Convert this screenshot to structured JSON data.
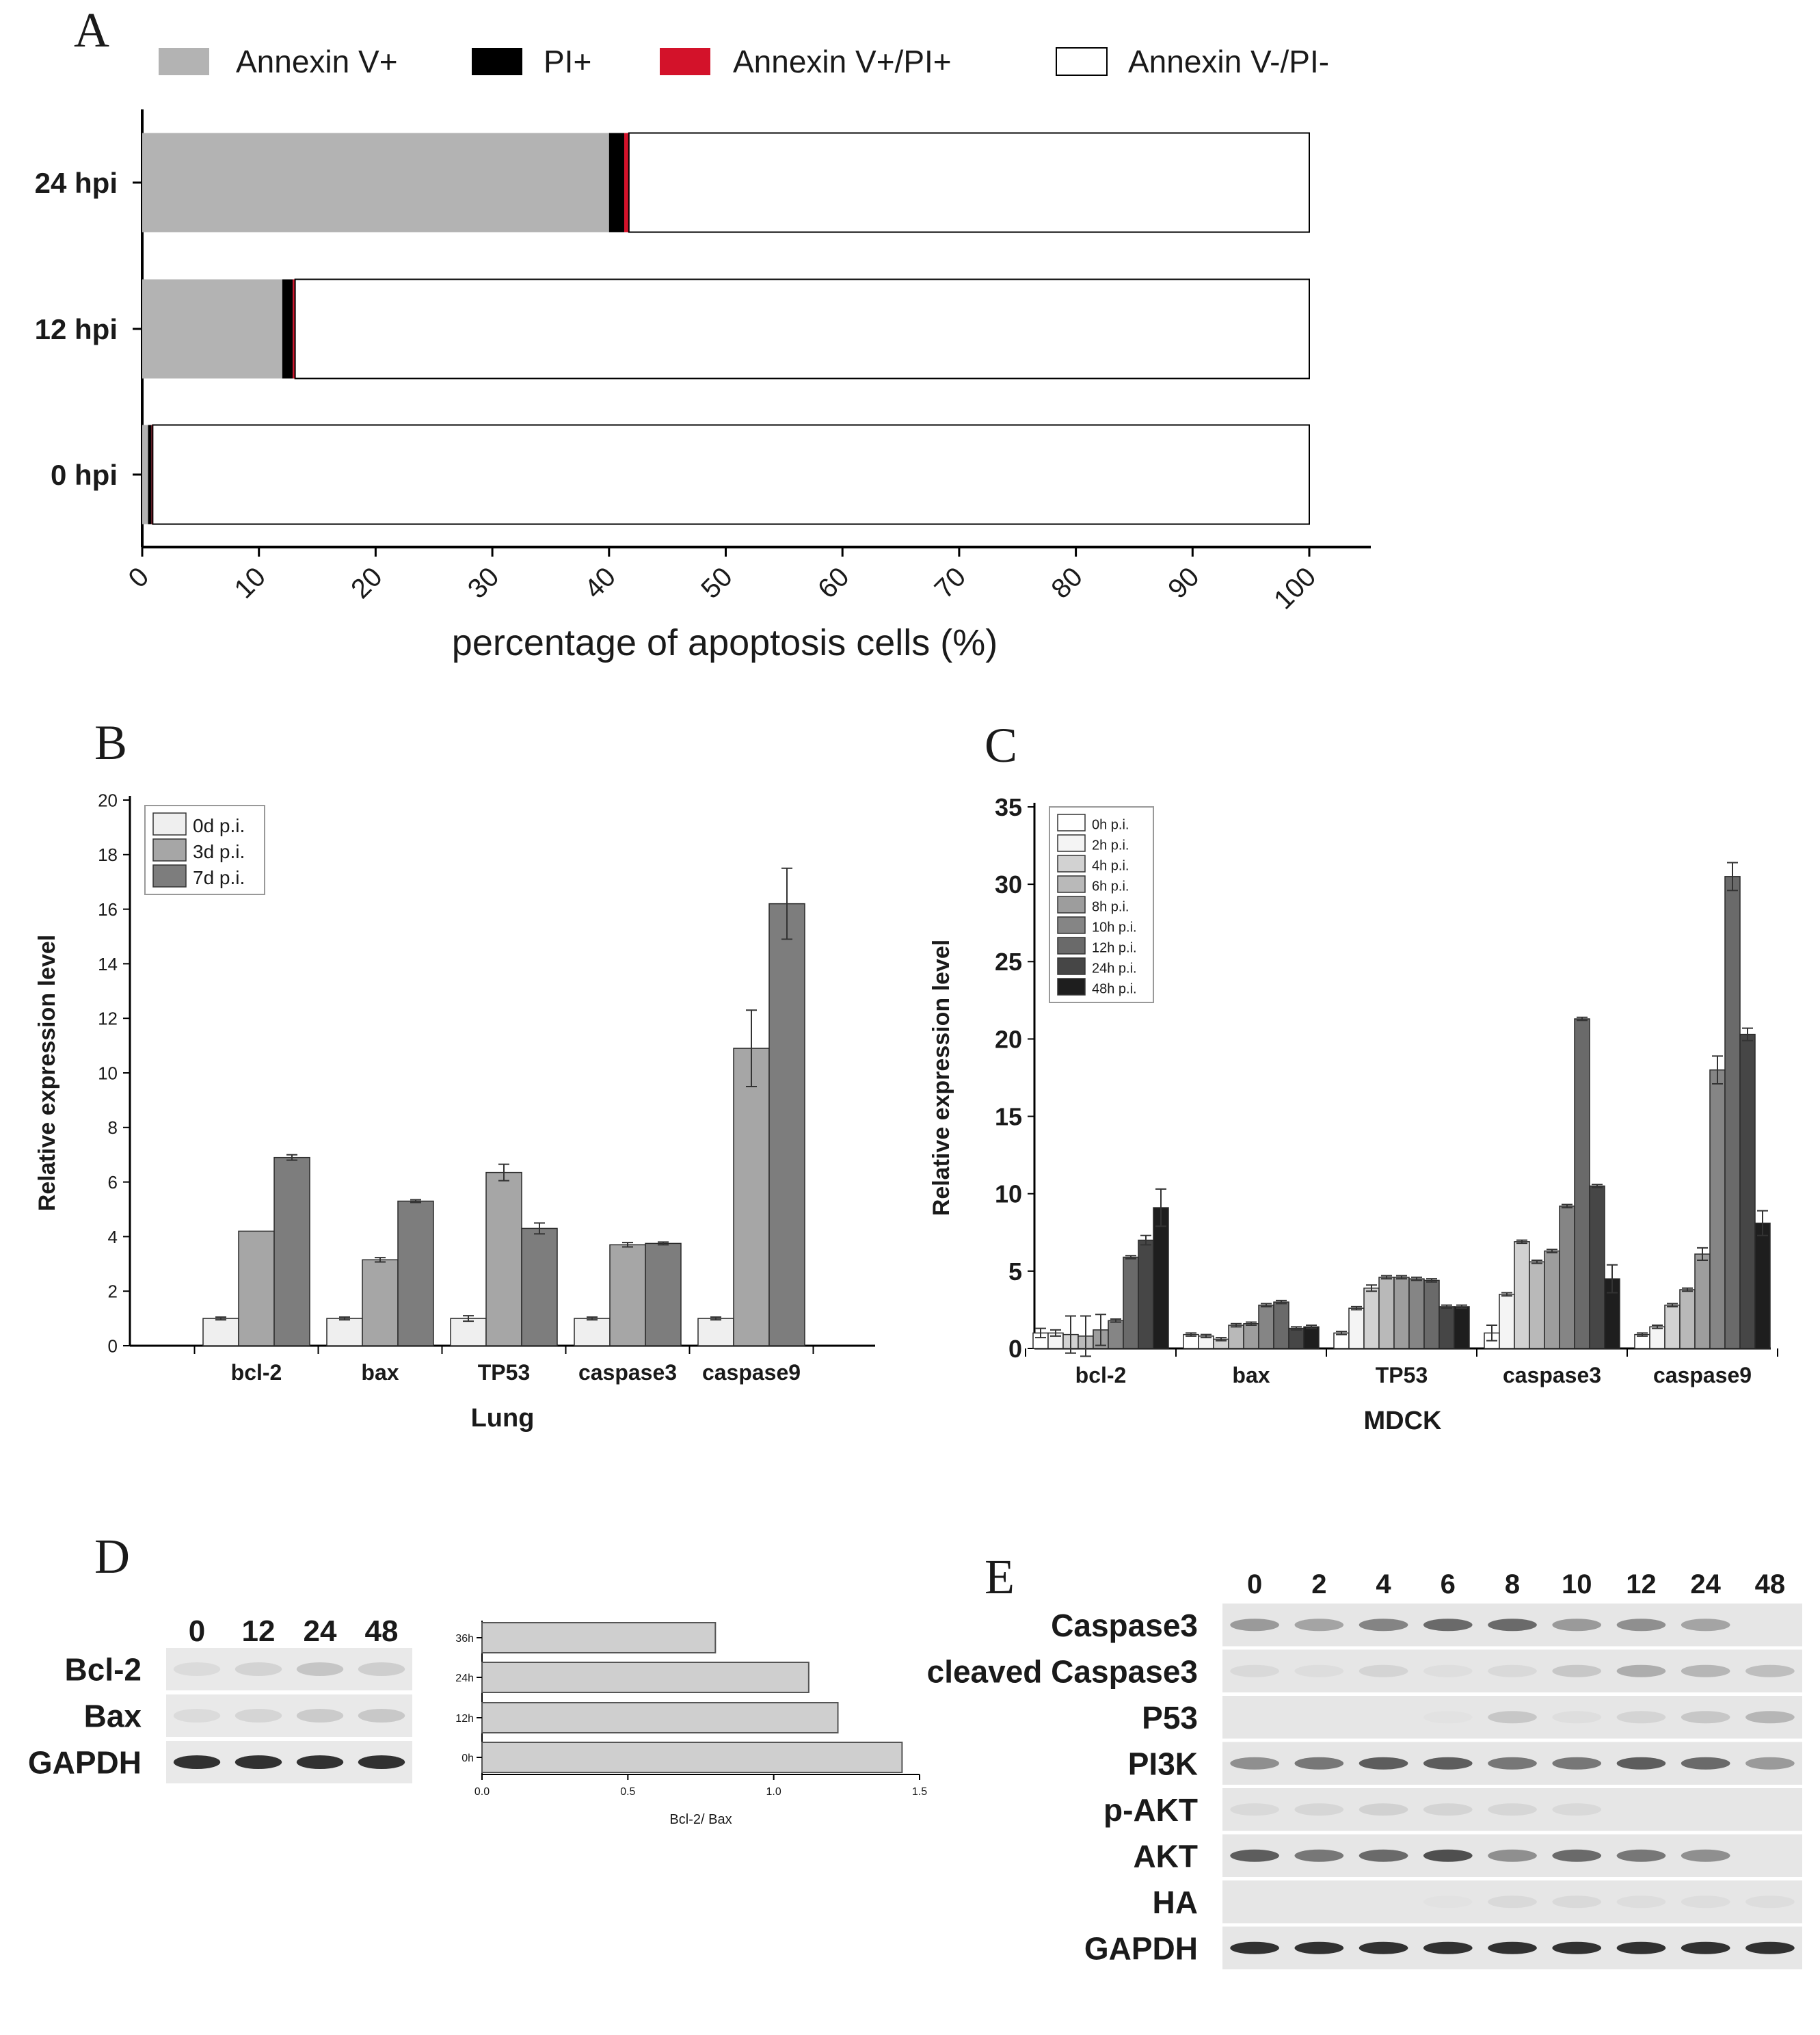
{
  "chart_data": [
    {
      "panel": "A",
      "type": "bar",
      "orientation": "horizontal",
      "stacked": true,
      "categories": [
        "24 hpi",
        "12 hpi",
        "0 hpi"
      ],
      "series": [
        {
          "name": "Annexin V+",
          "color": "#b3b3b3",
          "values": [
            40,
            12,
            0.5
          ]
        },
        {
          "name": "PI+",
          "color": "#000000",
          "values": [
            1.3,
            0.9,
            0.3
          ]
        },
        {
          "name": "Annexin V+/PI+",
          "color": "#d3122a",
          "values": [
            0.4,
            0.2,
            0.1
          ]
        },
        {
          "name": "Annexin V-/PI-",
          "color": "#ffffff",
          "values": [
            58.3,
            86.9,
            99.1
          ]
        }
      ],
      "xlabel": "percentage of apoptosis cells (%)",
      "xlim": [
        0,
        100
      ],
      "xticks": [
        "0",
        "10",
        "20",
        "30",
        "40",
        "50",
        "60",
        "70",
        "80",
        "90",
        "100"
      ],
      "legend": "top"
    },
    {
      "panel": "B",
      "type": "bar",
      "categories": [
        "bcl-2",
        "bax",
        "TP53",
        "caspase3",
        "caspase9"
      ],
      "series": [
        {
          "name": "0d p.i.",
          "color": "#efefef",
          "values": [
            1.0,
            1.0,
            1.0,
            1.0,
            1.0
          ],
          "errors": [
            0.05,
            0.05,
            0.1,
            0.05,
            0.05
          ]
        },
        {
          "name": "3d p.i.",
          "color": "#a6a6a6",
          "values": [
            4.2,
            3.15,
            6.35,
            3.7,
            10.9
          ],
          "errors": [
            0,
            0.08,
            0.3,
            0.08,
            1.4
          ]
        },
        {
          "name": "7d p.i.",
          "color": "#7d7d7d",
          "values": [
            6.9,
            5.3,
            4.3,
            3.75,
            16.2
          ],
          "errors": [
            0.1,
            0.05,
            0.2,
            0.05,
            1.3
          ]
        }
      ],
      "xlabel": "Lung",
      "ylabel": "Relative expression level",
      "ylim": [
        0,
        20
      ],
      "yticks": [
        "0",
        "2",
        "4",
        "6",
        "8",
        "10",
        "12",
        "14",
        "16",
        "18",
        "20"
      ],
      "legend": "top-left"
    },
    {
      "panel": "C",
      "type": "bar",
      "categories": [
        "bcl-2",
        "bax",
        "TP53",
        "caspase3",
        "caspase9"
      ],
      "series": [
        {
          "name": "0h p.i.",
          "color": "#ffffff",
          "values": [
            1.0,
            0.9,
            1.0,
            1.0,
            0.9
          ],
          "errors": [
            0.3,
            0.1,
            0.1,
            0.5,
            0.1
          ]
        },
        {
          "name": "2h p.i.",
          "color": "#f4f4f4",
          "values": [
            1.0,
            0.8,
            2.6,
            3.5,
            1.4
          ],
          "errors": [
            0.2,
            0.1,
            0.1,
            0.1,
            0.1
          ]
        },
        {
          "name": "4h p.i.",
          "color": "#d2d2d2",
          "values": [
            0.9,
            0.6,
            3.9,
            6.9,
            2.8
          ],
          "errors": [
            1.2,
            0.1,
            0.2,
            0.1,
            0.1
          ]
        },
        {
          "name": "6h p.i.",
          "color": "#b9b9b9",
          "values": [
            0.8,
            1.5,
            4.6,
            5.6,
            3.8
          ],
          "errors": [
            1.3,
            0.1,
            0.1,
            0.1,
            0.1
          ]
        },
        {
          "name": "8h p.i.",
          "color": "#9d9d9d",
          "values": [
            1.2,
            1.6,
            4.6,
            6.3,
            6.1
          ],
          "errors": [
            1.0,
            0.1,
            0.1,
            0.1,
            0.4
          ]
        },
        {
          "name": "10h p.i.",
          "color": "#858585",
          "values": [
            1.8,
            2.8,
            4.5,
            9.2,
            18.0
          ],
          "errors": [
            0.1,
            0.1,
            0.1,
            0.1,
            0.9
          ]
        },
        {
          "name": "12h p.i.",
          "color": "#6a6a6a",
          "values": [
            5.9,
            3.0,
            4.4,
            21.3,
            30.5
          ],
          "errors": [
            0.1,
            0.1,
            0.1,
            0.1,
            0.9
          ]
        },
        {
          "name": "24h p.i.",
          "color": "#464646",
          "values": [
            7.0,
            1.3,
            2.7,
            10.5,
            20.3
          ],
          "errors": [
            0.3,
            0.1,
            0.1,
            0.1,
            0.4
          ]
        },
        {
          "name": "48h p.i.",
          "color": "#1e1e1e",
          "values": [
            9.1,
            1.4,
            2.7,
            4.5,
            8.1
          ],
          "errors": [
            1.2,
            0.1,
            0.1,
            0.9,
            0.8
          ]
        }
      ],
      "xlabel": "MDCK",
      "ylabel": "Relative expression level",
      "ylim": [
        0,
        35
      ],
      "yticks": [
        "0",
        "5",
        "10",
        "15",
        "20",
        "25",
        "30",
        "35"
      ],
      "legend": "top-left"
    },
    {
      "panel": "D",
      "type": "bar",
      "orientation": "horizontal",
      "categories": [
        "36h",
        "24h",
        "12h",
        "0h"
      ],
      "values": [
        0.8,
        1.12,
        1.22,
        1.44
      ],
      "xlabel": "Bcl-2/ Bax",
      "xlim": [
        0,
        1.5
      ],
      "xticks": [
        "0.0",
        "0.5",
        "1.0",
        "1.5"
      ]
    }
  ],
  "panels": {
    "a": {
      "letter": "A"
    },
    "b": {
      "letter": "B"
    },
    "c": {
      "letter": "C"
    },
    "d": {
      "letter": "D"
    },
    "e": {
      "letter": "E"
    }
  },
  "blot_d": {
    "lanes": [
      "0",
      "12",
      "24",
      "48"
    ],
    "rows": [
      {
        "label": "Bcl-2",
        "intensity": [
          0.15,
          0.22,
          0.32,
          0.25
        ]
      },
      {
        "label": "Bax",
        "intensity": [
          0.15,
          0.2,
          0.28,
          0.3
        ]
      },
      {
        "label": "GAPDH",
        "intensity": [
          0.95,
          0.95,
          0.95,
          0.95
        ]
      }
    ]
  },
  "blot_e": {
    "lanes": [
      "0",
      "2",
      "4",
      "6",
      "8",
      "10",
      "12",
      "24",
      "48"
    ],
    "rows": [
      {
        "label": "Caspase3",
        "intensity": [
          0.55,
          0.5,
          0.65,
          0.75,
          0.75,
          0.55,
          0.6,
          0.5,
          0.0
        ]
      },
      {
        "label": "cleaved Caspase3",
        "intensity": [
          0.15,
          0.12,
          0.2,
          0.1,
          0.15,
          0.3,
          0.45,
          0.4,
          0.35
        ]
      },
      {
        "label": "P53",
        "intensity": [
          0.0,
          0.0,
          0.0,
          0.05,
          0.3,
          0.1,
          0.2,
          0.3,
          0.4
        ]
      },
      {
        "label": "PI3K",
        "intensity": [
          0.6,
          0.7,
          0.8,
          0.8,
          0.7,
          0.7,
          0.8,
          0.75,
          0.55
        ]
      },
      {
        "label": "p-AKT",
        "intensity": [
          0.15,
          0.18,
          0.22,
          0.2,
          0.18,
          0.15,
          0.0,
          0.0,
          0.0
        ]
      },
      {
        "label": "AKT",
        "intensity": [
          0.8,
          0.7,
          0.75,
          0.85,
          0.6,
          0.75,
          0.7,
          0.6,
          0.0
        ]
      },
      {
        "label": "HA",
        "intensity": [
          0.0,
          0.0,
          0.0,
          0.05,
          0.15,
          0.15,
          0.12,
          0.12,
          0.12
        ]
      },
      {
        "label": "GAPDH",
        "intensity": [
          0.95,
          0.95,
          0.95,
          0.95,
          0.95,
          0.95,
          0.95,
          0.95,
          0.95
        ]
      }
    ]
  }
}
